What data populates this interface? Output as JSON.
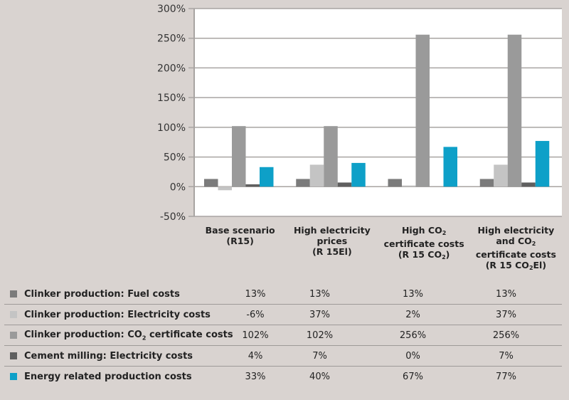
{
  "chart_data": {
    "type": "bar",
    "title": "",
    "xlabel": "",
    "ylabel": "",
    "ylim": [
      -50,
      300
    ],
    "yticks": [
      "300%",
      "250%",
      "200%",
      "150%",
      "100%",
      "50%",
      "0%",
      "-50%"
    ],
    "ytick_values": [
      300,
      250,
      200,
      150,
      100,
      50,
      0,
      -50
    ],
    "grid": true,
    "categories": [
      [
        "Base scenario",
        "(R15)"
      ],
      [
        "High electricity",
        "prices",
        "(R 15El)"
      ],
      [
        "High CO₂",
        "certificate costs",
        "(R 15 CO₂)"
      ],
      [
        "High electricity",
        "and CO₂",
        "certificate costs",
        "(R 15 CO₂El)"
      ]
    ],
    "series": [
      {
        "name": "Clinker production: Fuel costs",
        "color": "#7b7b7b",
        "values": [
          13,
          13,
          13,
          13
        ],
        "labels": [
          "13%",
          "13%",
          "13%",
          "13%"
        ]
      },
      {
        "name": "Clinker production: Electricity costs",
        "color": "#c4c4c4",
        "values": [
          -6,
          37,
          2,
          37
        ],
        "labels": [
          "-6%",
          "37%",
          "2%",
          "37%"
        ]
      },
      {
        "name": "Clinker production:  CO₂ certificate costs",
        "color": "#9a9a9a",
        "values": [
          102,
          102,
          256,
          256
        ],
        "labels": [
          "102%",
          "102%",
          "256%",
          "256%"
        ]
      },
      {
        "name": "Cement milling: Electricity costs",
        "color": "#5f5f5f",
        "values": [
          4,
          7,
          0,
          7
        ],
        "labels": [
          "4%",
          "7%",
          "0%",
          "7%"
        ]
      },
      {
        "name": "Energy related production costs",
        "color": "#0ea0c8",
        "values": [
          33,
          40,
          67,
          77
        ],
        "labels": [
          "33%",
          "40%",
          "67%",
          "77%"
        ]
      }
    ],
    "legend": "table-below"
  }
}
